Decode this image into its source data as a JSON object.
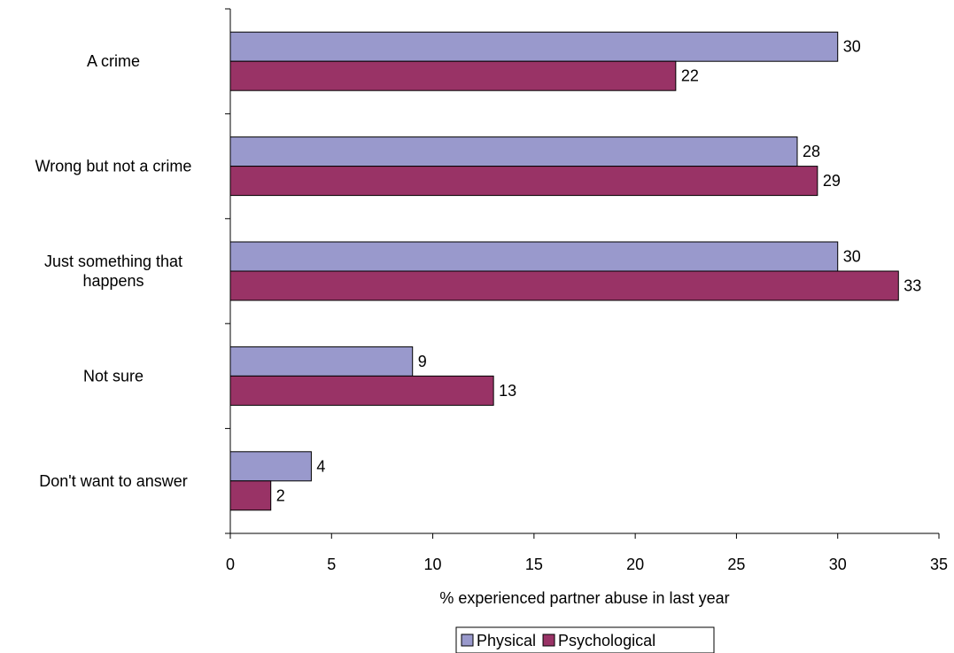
{
  "chart_data": {
    "type": "bar",
    "orientation": "horizontal",
    "categories": [
      "A crime",
      "Wrong but not a crime",
      "Just something that happens",
      "Not sure",
      "Don't want to answer"
    ],
    "category_label_lines": [
      [
        "A crime"
      ],
      [
        "Wrong but not a crime"
      ],
      [
        "Just something that",
        "happens"
      ],
      [
        "Not sure"
      ],
      [
        "Don't want to answer"
      ]
    ],
    "series": [
      {
        "name": "Physical",
        "values": [
          30,
          28,
          30,
          9,
          4
        ],
        "color": "#9999cc"
      },
      {
        "name": "Psychological",
        "values": [
          22,
          29,
          33,
          13,
          2
        ],
        "color": "#993366"
      }
    ],
    "xlabel": "% experienced partner abuse in last year",
    "ylabel": "",
    "xlim": [
      0,
      35
    ],
    "x_ticks": [
      0,
      5,
      10,
      15,
      20,
      25,
      30,
      35
    ],
    "grid": false,
    "legend_position": "bottom"
  }
}
